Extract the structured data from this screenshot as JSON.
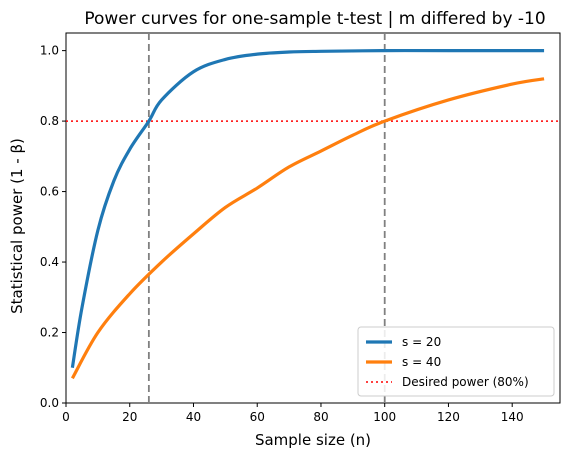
{
  "chart_data": {
    "type": "line",
    "title": "Power curves for one-sample t-test | m differed by -10",
    "xlabel": "Sample size (n)",
    "ylabel": "Statistical power (1 - β)",
    "xlim": [
      0,
      155
    ],
    "ylim": [
      0,
      1.05
    ],
    "xticks": [
      0,
      20,
      40,
      60,
      80,
      100,
      120,
      140
    ],
    "yticks": [
      0.0,
      0.2,
      0.4,
      0.6,
      0.8,
      1.0
    ],
    "xtick_labels": [
      "0",
      "20",
      "40",
      "60",
      "80",
      "100",
      "120",
      "140"
    ],
    "ytick_labels": [
      "0.0",
      "0.2",
      "0.4",
      "0.6",
      "0.8",
      "1.0"
    ],
    "grid": false,
    "legend_position": "lower-right",
    "series": [
      {
        "name": "s = 20",
        "color": "#1f77b4",
        "x": [
          2,
          5,
          10,
          15,
          20,
          26,
          30,
          40,
          50,
          60,
          70,
          80,
          100,
          120,
          150
        ],
        "y": [
          0.1,
          0.27,
          0.49,
          0.63,
          0.72,
          0.8,
          0.86,
          0.94,
          0.975,
          0.99,
          0.996,
          0.998,
          1.0,
          1.0,
          1.0
        ]
      },
      {
        "name": "s = 40",
        "color": "#ff7f0e",
        "x": [
          2,
          10,
          20,
          30,
          40,
          50,
          60,
          70,
          80,
          90,
          100,
          120,
          140,
          150
        ],
        "y": [
          0.07,
          0.2,
          0.31,
          0.4,
          0.48,
          0.555,
          0.61,
          0.67,
          0.715,
          0.76,
          0.8,
          0.86,
          0.905,
          0.92
        ]
      }
    ],
    "reference_lines": [
      {
        "orientation": "horizontal",
        "value": 0.8,
        "style": "dotted",
        "color": "#ff0000",
        "label": "Desired power (80%)"
      },
      {
        "orientation": "vertical",
        "value": 26,
        "style": "dashed",
        "color": "#808080"
      },
      {
        "orientation": "vertical",
        "value": 100,
        "style": "dashed",
        "color": "#808080"
      }
    ]
  }
}
